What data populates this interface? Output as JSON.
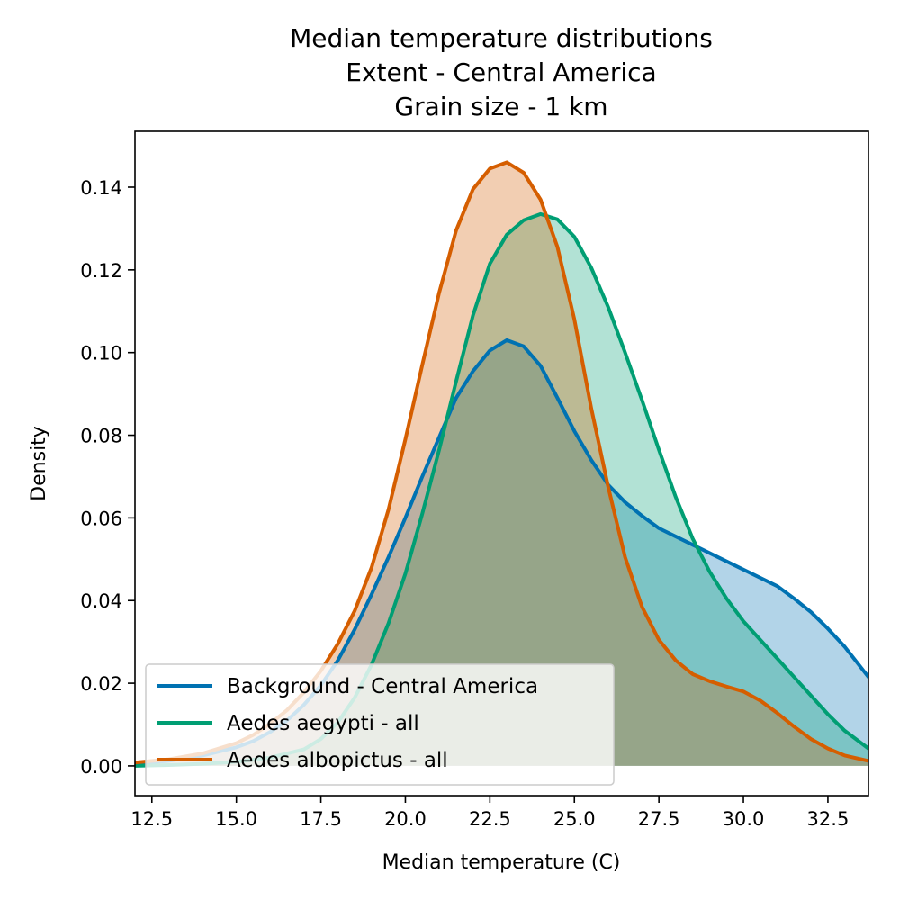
{
  "chart_data": {
    "type": "area",
    "title_lines": [
      "Median temperature distributions",
      "Extent - Central America",
      "Grain size - 1 km"
    ],
    "xlabel": "Median temperature (C)",
    "ylabel": "Density",
    "xlim": [
      12.0,
      33.7
    ],
    "ylim": [
      -0.0072,
      0.1535
    ],
    "xticks": [
      12.5,
      15.0,
      17.5,
      20.0,
      22.5,
      25.0,
      27.5,
      30.0,
      32.5
    ],
    "xtick_labels": [
      "12.5",
      "15.0",
      "17.5",
      "20.0",
      "22.5",
      "25.0",
      "27.5",
      "30.0",
      "32.5"
    ],
    "yticks": [
      0.0,
      0.02,
      0.04,
      0.06,
      0.08,
      0.1,
      0.12,
      0.14
    ],
    "ytick_labels": [
      "0.00",
      "0.02",
      "0.04",
      "0.06",
      "0.08",
      "0.10",
      "0.12",
      "0.14"
    ],
    "grid": false,
    "legend_position": "bottom-left",
    "series": [
      {
        "name": "Background - Central America",
        "color": "#0072b2",
        "fill_opacity": 0.3,
        "x": [
          12.0,
          13.0,
          14.0,
          15.0,
          15.5,
          16.0,
          16.5,
          17.0,
          17.5,
          18.0,
          18.5,
          19.0,
          19.5,
          20.0,
          20.5,
          21.0,
          21.5,
          22.0,
          22.5,
          23.0,
          23.5,
          24.0,
          24.5,
          25.0,
          25.5,
          26.0,
          26.5,
          27.0,
          27.5,
          28.0,
          29.0,
          30.0,
          31.0,
          31.5,
          32.0,
          32.5,
          33.0,
          33.7
        ],
        "y": [
          0.0005,
          0.0012,
          0.0025,
          0.0045,
          0.006,
          0.0082,
          0.011,
          0.0148,
          0.0195,
          0.0255,
          0.033,
          0.0415,
          0.0505,
          0.06,
          0.07,
          0.0795,
          0.089,
          0.0955,
          0.1005,
          0.103,
          0.1015,
          0.0968,
          0.089,
          0.081,
          0.074,
          0.068,
          0.0638,
          0.0605,
          0.0575,
          0.0555,
          0.0515,
          0.0475,
          0.0435,
          0.0405,
          0.0372,
          0.0332,
          0.0288,
          0.0215
        ]
      },
      {
        "name": "Aedes aegypti - all",
        "color": "#009e73",
        "fill_opacity": 0.3,
        "x": [
          12.0,
          13.0,
          14.0,
          15.0,
          16.0,
          17.0,
          17.5,
          18.0,
          18.5,
          19.0,
          19.5,
          20.0,
          20.5,
          21.0,
          21.5,
          22.0,
          22.5,
          23.0,
          23.5,
          24.0,
          24.5,
          25.0,
          25.5,
          26.0,
          26.5,
          27.0,
          27.5,
          28.0,
          28.5,
          29.0,
          29.5,
          30.0,
          30.5,
          31.0,
          31.5,
          32.0,
          32.5,
          33.0,
          33.7
        ],
        "y": [
          0.0,
          0.0002,
          0.0005,
          0.001,
          0.002,
          0.004,
          0.0065,
          0.0105,
          0.0165,
          0.0245,
          0.0345,
          0.0465,
          0.061,
          0.0765,
          0.093,
          0.109,
          0.1215,
          0.1285,
          0.132,
          0.1335,
          0.1322,
          0.128,
          0.1205,
          0.111,
          0.1,
          0.0885,
          0.0765,
          0.065,
          0.055,
          0.047,
          0.0405,
          0.035,
          0.0305,
          0.026,
          0.0215,
          0.017,
          0.0125,
          0.0085,
          0.0042
        ]
      },
      {
        "name": "Aedes albopictus - all",
        "color": "#d55e00",
        "fill_opacity": 0.3,
        "x": [
          12.0,
          13.0,
          14.0,
          15.0,
          15.5,
          16.0,
          16.5,
          17.0,
          17.5,
          18.0,
          18.5,
          19.0,
          19.5,
          20.0,
          20.5,
          21.0,
          21.5,
          22.0,
          22.5,
          23.0,
          23.5,
          24.0,
          24.5,
          25.0,
          25.5,
          26.0,
          26.5,
          27.0,
          27.5,
          28.0,
          28.5,
          29.0,
          29.5,
          30.0,
          30.5,
          31.0,
          31.5,
          32.0,
          32.5,
          33.0,
          33.7
        ],
        "y": [
          0.0008,
          0.0016,
          0.003,
          0.0055,
          0.0075,
          0.0102,
          0.0135,
          0.0178,
          0.023,
          0.0295,
          0.0375,
          0.048,
          0.062,
          0.079,
          0.097,
          0.1145,
          0.1295,
          0.1395,
          0.1445,
          0.146,
          0.1435,
          0.137,
          0.1255,
          0.108,
          0.0865,
          0.0675,
          0.0505,
          0.0385,
          0.0305,
          0.0255,
          0.0222,
          0.0205,
          0.0192,
          0.018,
          0.0158,
          0.0128,
          0.0095,
          0.0065,
          0.0042,
          0.0025,
          0.0012
        ]
      }
    ]
  }
}
